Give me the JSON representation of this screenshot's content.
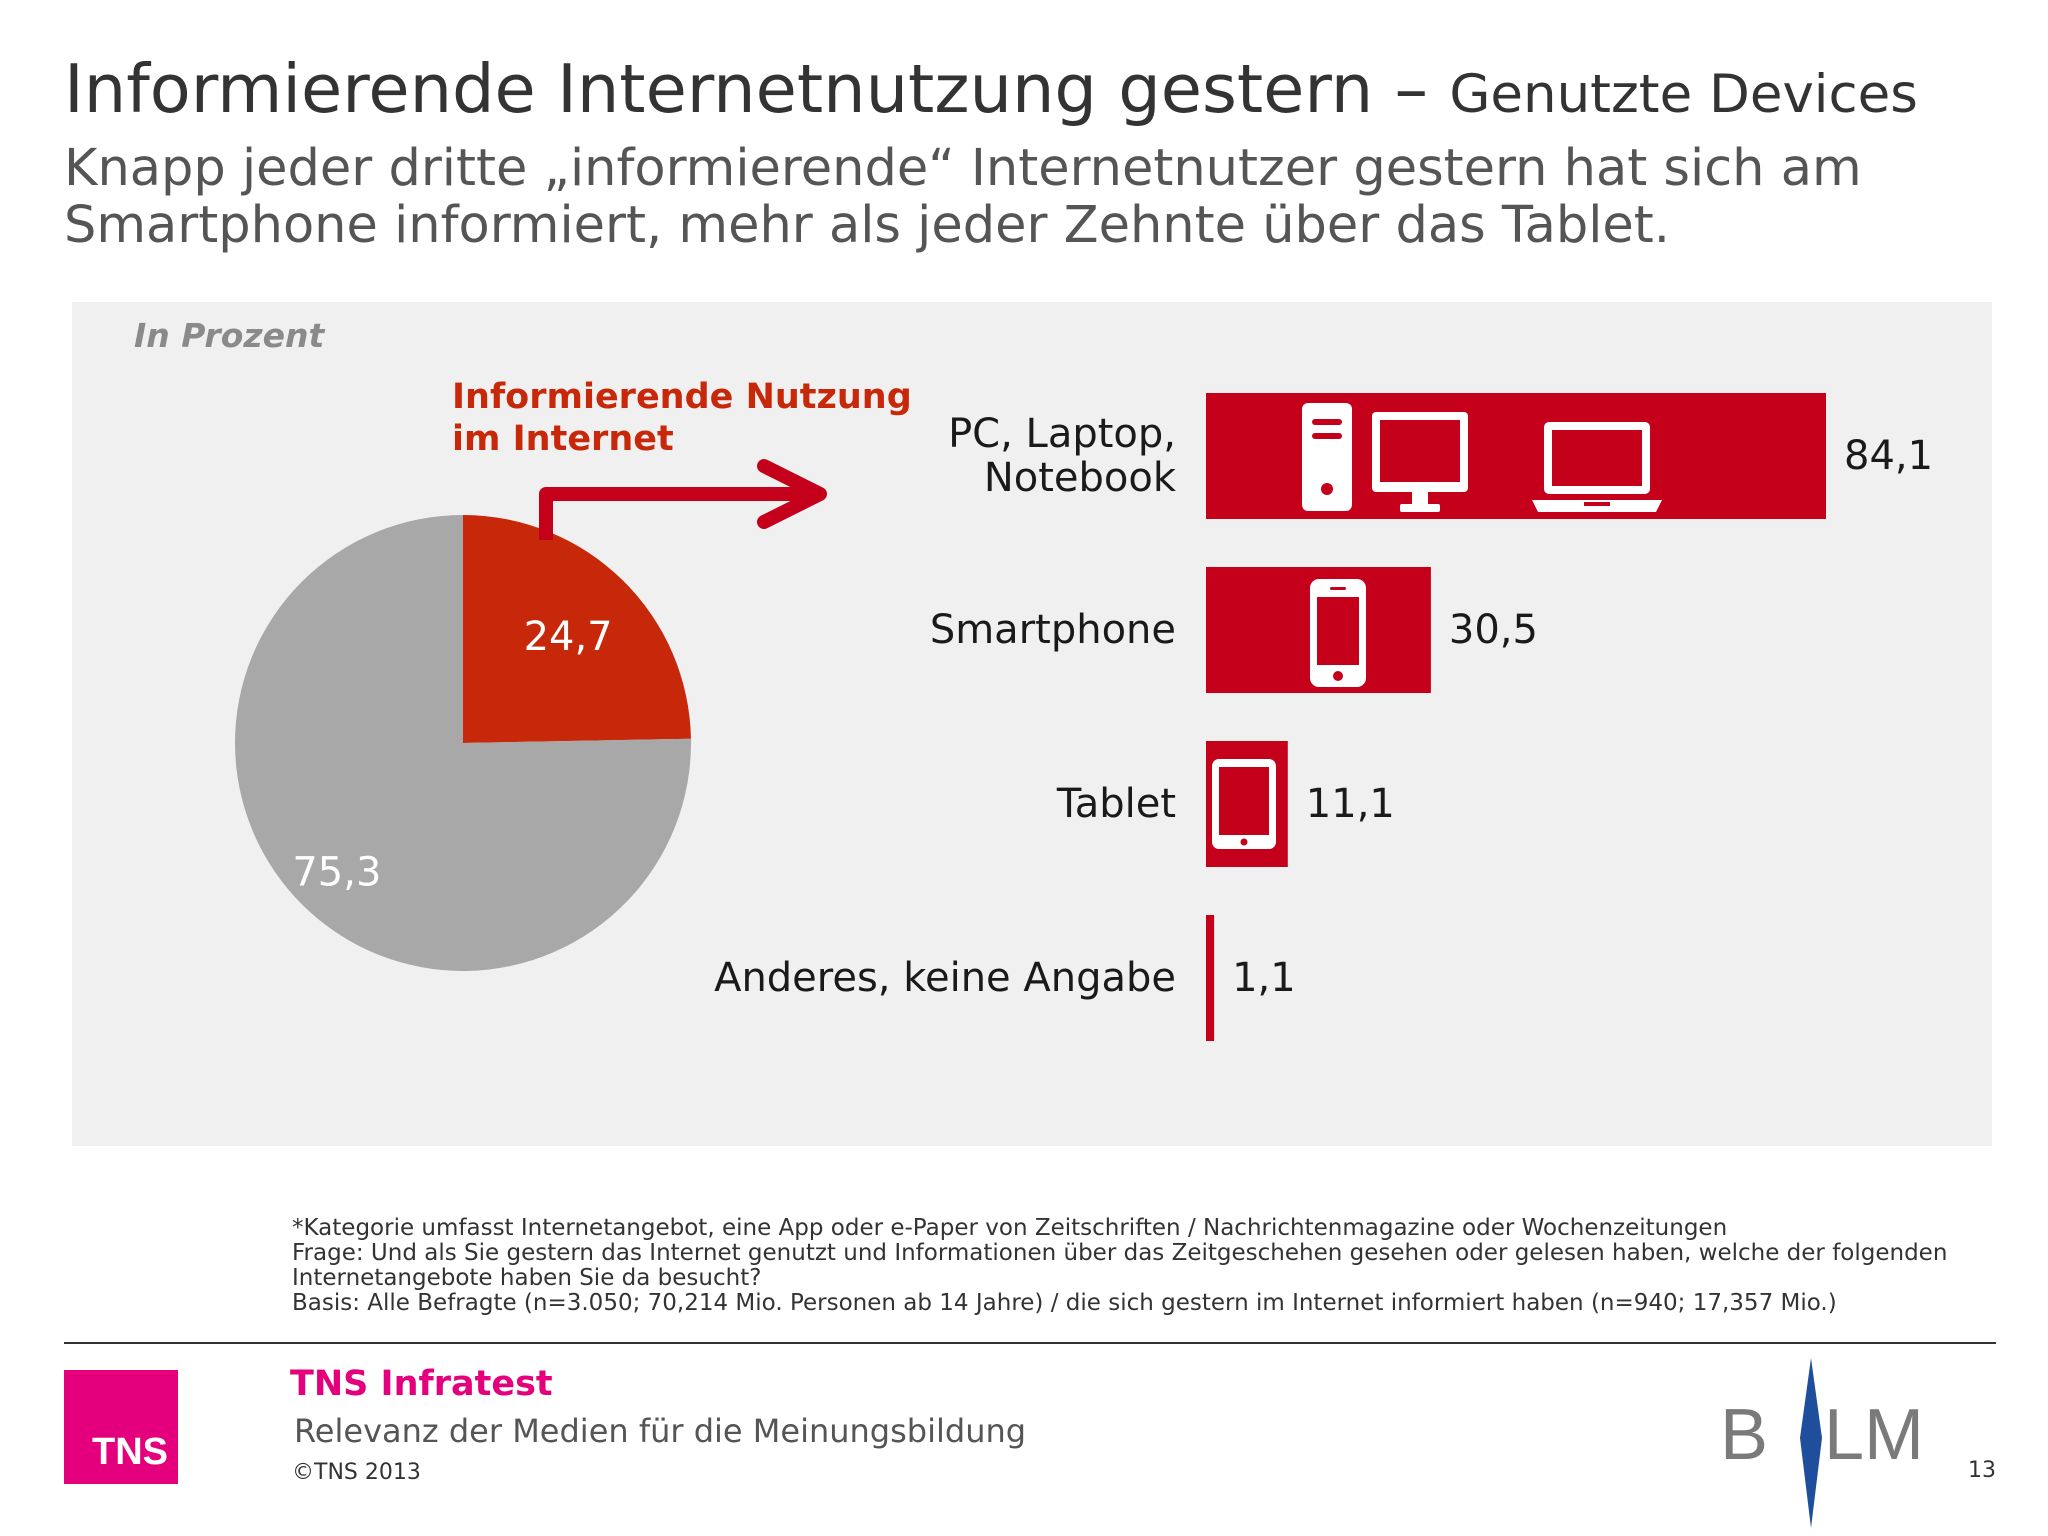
{
  "header": {
    "title": "Informierende Internetnutzung gestern –",
    "title_sub": "Genutzte Devices",
    "subtitle": "Knapp jeder dritte „informierende“ Internetnutzer gestern hat sich am Smartphone informiert, mehr als jeder Zehnte über das Tablet."
  },
  "unit_label": "In Prozent",
  "pie_title_lines": [
    "Informierende Nutzung",
    "im Internet"
  ],
  "chart_data": [
    {
      "type": "pie",
      "title": "Informierende Nutzung im Internet",
      "slices": [
        {
          "label": "24,7",
          "value": 24.7,
          "color": "#c8280a"
        },
        {
          "label": "75,3",
          "value": 75.3,
          "color": "#a8a8a8"
        }
      ]
    },
    {
      "type": "bar",
      "orientation": "horizontal",
      "categories": [
        [
          "PC, Laptop,",
          "Notebook"
        ],
        [
          "Smartphone"
        ],
        [
          "Tablet"
        ],
        [
          "Anderes, keine Angabe"
        ]
      ],
      "values": [
        84.1,
        30.5,
        11.1,
        1.1
      ],
      "value_labels": [
        "84,1",
        "30,5",
        "11,1",
        "1,1"
      ],
      "icons": [
        [
          "desktop-tower-icon",
          "monitor-icon",
          "laptop-icon"
        ],
        [
          "smartphone-icon"
        ],
        [
          "tablet-icon"
        ],
        []
      ],
      "color": "#c5001a"
    }
  ],
  "footnotes": [
    "*Kategorie umfasst Internetangebot, eine App oder e-Paper von Zeitschriften / Nachrichtenmagazine oder Wochenzeitungen",
    "Frage: Und als Sie gestern das Internet genutzt und Informationen über das Zeitgeschehen gesehen oder gelesen haben, welche der folgenden",
    "Internetangebote haben Sie da besucht?",
    "Basis: Alle Befragte (n=3.050; 70,214 Mio. Personen ab 14 Jahre) / die sich gestern im Internet informiert haben (n=940; 17,357 Mio.)"
  ],
  "footer": {
    "logo_text": "TNS",
    "brand": "TNS Infratest",
    "study": "Relevanz der Medien für die Meinungsbildung",
    "copyright": "©TNS 2013",
    "partner_logo_text": "BLM",
    "page_number": "13"
  },
  "colors": {
    "accent_red": "#c5001a",
    "pie_red": "#c8280a",
    "pie_grey": "#a8a8a8",
    "brand_magenta": "#e4007c",
    "panel_bg": "#f0f0f0"
  }
}
